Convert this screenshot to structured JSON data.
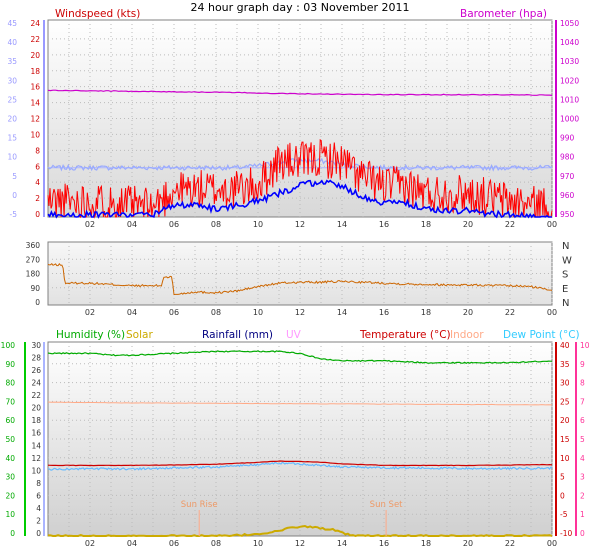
{
  "title": "24 hour graph day : 03 November 2011",
  "colors": {
    "wind": "#ff0000",
    "wind_avg": "#0000ff",
    "temp_axis": "#9999ff",
    "barometer": "#cc00cc",
    "direction": "#cc6600",
    "humidity": "#00aa00",
    "solar": "#ccaa00",
    "rainfall": "#000080",
    "uv": "#ff99ff",
    "temperature": "#cc0000",
    "indoor": "#ffaa88",
    "dew": "#33ccff",
    "dew_axis": "#ff3399",
    "grid": "#bbbbbb"
  },
  "x_ticks": [
    "02",
    "04",
    "06",
    "08",
    "10",
    "12",
    "14",
    "16",
    "18",
    "20",
    "22",
    "00"
  ],
  "chart_data": [
    {
      "type": "line",
      "labels": {
        "left": "Windspeed (kts)",
        "right": "Barometer (hpa)"
      },
      "axes": {
        "outer_left": [
          "45",
          "40",
          "35",
          "30",
          "25",
          "20",
          "15",
          "10",
          "5",
          "0",
          "-5"
        ],
        "inner_left": [
          "24",
          "22",
          "20",
          "18",
          "16",
          "14",
          "12",
          "10",
          "8",
          "6",
          "4",
          "2",
          "0"
        ],
        "right": [
          "1050",
          "1040",
          "1030",
          "1020",
          "1010",
          "1000",
          "990",
          "980",
          "970",
          "960",
          "950"
        ]
      },
      "ylim_wind": [
        0,
        25
      ],
      "ylim_baro": [
        947,
        1052
      ],
      "series": [
        {
          "name": "Windspeed (kts)",
          "x": [
            0,
            2,
            4,
            5,
            6,
            7,
            8,
            9,
            10,
            11,
            12,
            13,
            14,
            15,
            16,
            17,
            18,
            19,
            20,
            21,
            22,
            23,
            24
          ],
          "values": [
            2,
            2,
            1.5,
            1.2,
            3.5,
            3.5,
            3.5,
            3.5,
            4,
            7,
            7,
            7.5,
            7,
            5,
            4,
            4,
            3,
            3,
            3,
            2.5,
            2,
            1.5,
            1.5
          ]
        },
        {
          "name": "Average wind",
          "x": [
            0,
            2,
            4,
            5,
            6,
            7,
            8,
            9,
            10,
            11,
            12,
            13,
            14,
            15,
            16,
            17,
            18,
            19,
            20,
            21,
            22,
            23,
            24
          ],
          "values": [
            0.3,
            0.3,
            0.3,
            0.3,
            1.5,
            1.5,
            1,
            1.5,
            2,
            3,
            4,
            4.5,
            4,
            2.5,
            1.8,
            1.8,
            1,
            0.8,
            0.8,
            0.4,
            0.3,
            0,
            0
          ]
        },
        {
          "name": "Barometer (hpa)",
          "x": [
            0,
            4,
            8,
            12,
            16,
            20,
            24
          ],
          "values": [
            1014.5,
            1014,
            1013.5,
            1012.7,
            1012.2,
            1012.2,
            1012
          ]
        }
      ]
    },
    {
      "type": "line",
      "labels": {
        "right": [
          "N",
          "W",
          "S",
          "E",
          "N"
        ]
      },
      "axes": {
        "left": [
          "360",
          "270",
          "180",
          "90",
          "0"
        ]
      },
      "ylim": [
        0,
        360
      ],
      "series": [
        {
          "name": "Wind direction",
          "x": [
            0,
            0.7,
            0.8,
            2,
            4,
            5,
            5.4,
            5.5,
            5.9,
            6,
            7,
            8,
            9,
            10,
            11,
            12,
            13,
            14,
            15,
            16,
            17,
            18,
            19,
            20,
            21,
            22,
            23,
            24
          ],
          "values": [
            230,
            230,
            125,
            125,
            110,
            110,
            110,
            160,
            160,
            60,
            75,
            70,
            80,
            105,
            125,
            130,
            130,
            135,
            130,
            125,
            120,
            118,
            115,
            115,
            112,
            110,
            105,
            85
          ]
        }
      ]
    },
    {
      "type": "line",
      "labels": {
        "humidity": "Humidity (%)",
        "solar": "Solar",
        "rainfall": "Rainfall (mm)",
        "uv": "UV",
        "temperature": "Temperature (°C)",
        "indoor": "Indoor",
        "dew": "Dew Point (°C)",
        "sunrise": "Sun Rise",
        "sunset": "Sun Set"
      },
      "axes": {
        "humidity": [
          "100",
          "90",
          "80",
          "70",
          "60",
          "50",
          "40",
          "30",
          "20",
          "10",
          "0"
        ],
        "rainfall": [
          "30",
          "28",
          "26",
          "24",
          "22",
          "20",
          "18",
          "16",
          "14",
          "12",
          "10",
          "8",
          "6",
          "4",
          "2",
          "0"
        ],
        "temperature": [
          "40",
          "35",
          "30",
          "25",
          "20",
          "15",
          "10",
          "5",
          "0",
          "-5",
          "-10"
        ],
        "dew": [
          "10",
          "9",
          "8",
          "7",
          "6",
          "5",
          "4",
          "3",
          "2",
          "1",
          "0"
        ]
      },
      "ylim_temp": [
        -10,
        40
      ],
      "series": [
        {
          "name": "Humidity (%)",
          "x": [
            0,
            2,
            3,
            4,
            6,
            8,
            10,
            11,
            12,
            13,
            14,
            16,
            18,
            20,
            22,
            24
          ],
          "values": [
            97,
            97,
            96,
            96,
            97,
            98,
            98,
            98,
            97,
            94,
            93,
            93,
            92,
            92,
            92,
            93
          ]
        },
        {
          "name": "Indoor",
          "x": [
            0,
            4,
            8,
            12,
            16,
            20,
            24
          ],
          "values": [
            24.5,
            24.3,
            24.2,
            24.1,
            24.0,
            23.9,
            23.8
          ]
        },
        {
          "name": "Temperature (°C)",
          "x": [
            0,
            2,
            4,
            6,
            8,
            10,
            11,
            12,
            13,
            14,
            16,
            18,
            20,
            22,
            24
          ],
          "values": [
            8.2,
            8.2,
            8.2,
            8.3,
            8.5,
            9.0,
            9.3,
            9.2,
            9.0,
            8.6,
            8.2,
            8.2,
            8.2,
            8.3,
            8.4
          ]
        },
        {
          "name": "Dew Point (°C)",
          "x": [
            0,
            2,
            4,
            6,
            8,
            10,
            11,
            12,
            13,
            14,
            16,
            18,
            20,
            22,
            24
          ],
          "values": [
            7.2,
            7.3,
            7.3,
            7.5,
            7.8,
            8.4,
            8.8,
            8.6,
            8.2,
            7.8,
            7.6,
            7.5,
            7.4,
            7.4,
            7.5
          ]
        },
        {
          "name": "Solar",
          "x": [
            7.5,
            8.5,
            9.5,
            10.5,
            11,
            11.5,
            12,
            12.5,
            13,
            13.5,
            14,
            14.5
          ],
          "values": [
            0,
            0,
            0.2,
            0.5,
            0.8,
            1.2,
            1.5,
            1.4,
            1.2,
            1.0,
            0.5,
            0
          ]
        }
      ],
      "sun_rise_hour": 7.2,
      "sun_set_hour": 16.1
    }
  ]
}
